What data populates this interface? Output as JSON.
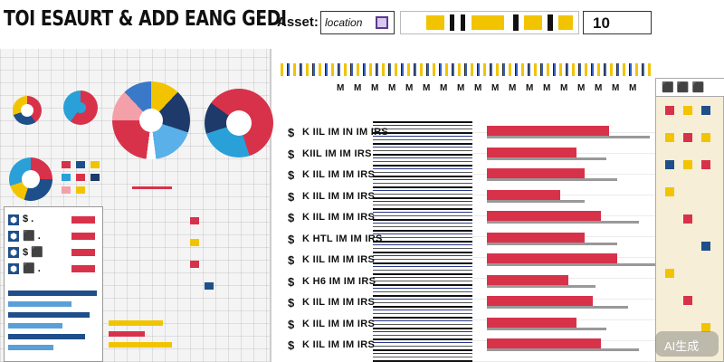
{
  "header": {
    "title": "TOI ESAURT & ADD EANG GEDI",
    "asset_label": "Asset:",
    "location_text": "location",
    "count": "10"
  },
  "timeline": {
    "labels": [
      "M",
      "M",
      "M",
      "M",
      "M",
      "M",
      "M",
      "M",
      "M",
      "M",
      "M",
      "M",
      "M",
      "M",
      "M",
      "M",
      "M",
      "M"
    ]
  },
  "tasks": [
    {
      "icon": "$",
      "label": "K IIL IM IN IM IRS",
      "bar_value": 0.75
    },
    {
      "icon": "$",
      "label": "KIIL IM IM IRS",
      "bar_value": 0.55
    },
    {
      "icon": "$",
      "label": "K IIL IM IM IRS",
      "bar_value": 0.6
    },
    {
      "icon": "$",
      "label": "K IIL IM IM IRS",
      "bar_value": 0.45
    },
    {
      "icon": "$",
      "label": "K IIL IM IM IRS",
      "bar_value": 0.7
    },
    {
      "icon": "$",
      "label": "K HTL IM IM IRS",
      "bar_value": 0.6
    },
    {
      "icon": "$",
      "label": "K IIL IM IM IRS",
      "bar_value": 0.8
    },
    {
      "icon": "$",
      "label": "K H6 IM IM IRS",
      "bar_value": 0.5
    },
    {
      "icon": "$",
      "label": "K IIL IM IM IRS",
      "bar_value": 0.65
    },
    {
      "icon": "$",
      "label": "K IIL IM IM IRS",
      "bar_value": 0.55
    },
    {
      "icon": "$",
      "label": "K IIL IM IM IRS",
      "bar_value": 0.7
    }
  ],
  "list": [
    {
      "icon": "⬢",
      "label": "$ ."
    },
    {
      "icon": "⬢",
      "label": "⬛ ."
    },
    {
      "icon": "⬢",
      "label": "$ ⬛"
    },
    {
      "icon": "⬢",
      "label": "⬛ ."
    }
  ],
  "right_panel": {
    "title": "⬛ ⬛ ⬛"
  },
  "badge": {
    "text": "AI生成"
  },
  "colors": {
    "accent_red": "#d8324a",
    "accent_yellow": "#f2c400",
    "accent_blue": "#1e4f8a"
  }
}
